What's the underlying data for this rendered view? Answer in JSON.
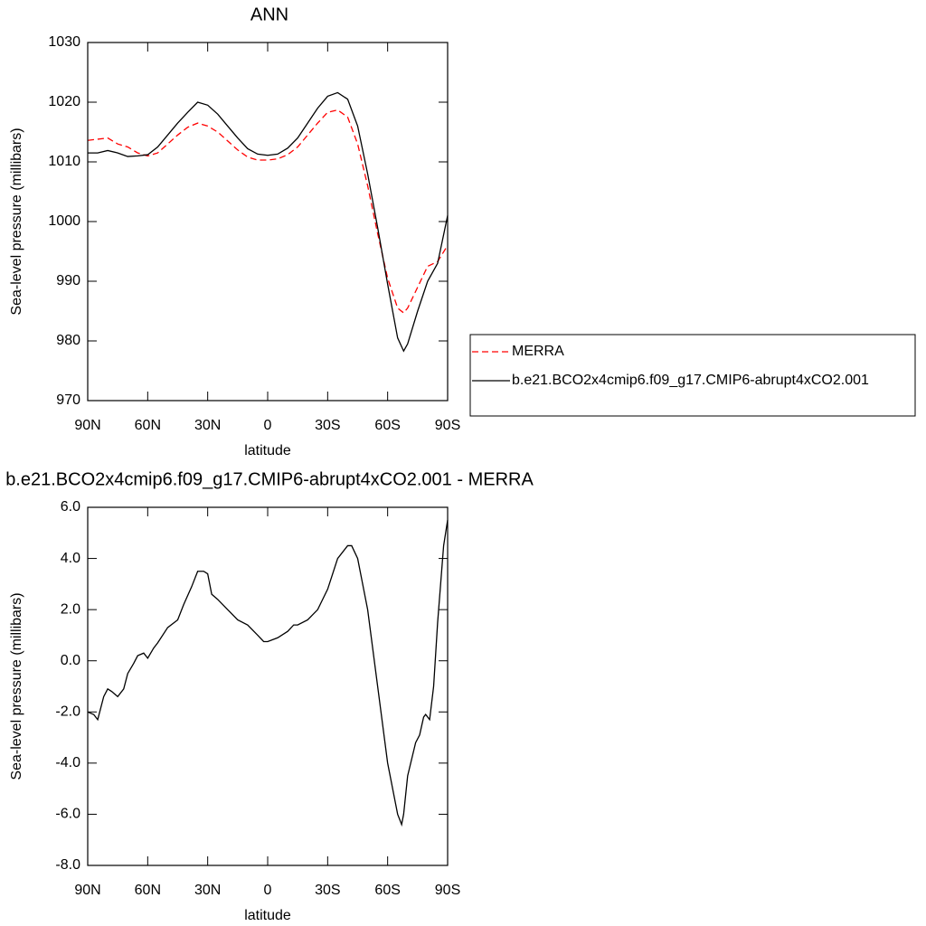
{
  "chart_data": [
    {
      "type": "line",
      "title": "ANN",
      "x_label": "latitude",
      "y_label": "Sea-level pressure (millibars)",
      "x": [
        90,
        85,
        80,
        75,
        70,
        65,
        60,
        55,
        50,
        45,
        40,
        35,
        30,
        25,
        20,
        15,
        10,
        5,
        0,
        -5,
        -10,
        -15,
        -20,
        -25,
        -30,
        -35,
        -40,
        -45,
        -50,
        -55,
        -60,
        -65,
        -68,
        -70,
        -75,
        -80,
        -85,
        -90
      ],
      "series": [
        {
          "name": "MERRA",
          "color": "#ff0000",
          "dash": true,
          "values": [
            1013.6,
            1013.8,
            1014,
            1013,
            1012.5,
            1011.5,
            1011,
            1011.5,
            1013,
            1014.5,
            1015.8,
            1016.5,
            1016,
            1015,
            1013.5,
            1012,
            1010.8,
            1010.3,
            1010.3,
            1010.5,
            1011.2,
            1012.5,
            1014.5,
            1016.5,
            1018.3,
            1018.7,
            1017.5,
            1013,
            1006,
            998,
            990.5,
            985.5,
            984.7,
            985.5,
            989,
            992.5,
            993.3,
            996
          ]
        },
        {
          "name": "b.e21.BCO2x4cmip6.f09_g17.CMIP6-abrupt4xCO2.001",
          "color": "#000000",
          "dash": false,
          "values": [
            1011.5,
            1011.5,
            1011.9,
            1011.5,
            1010.9,
            1011,
            1011.2,
            1012.5,
            1014.5,
            1016.5,
            1018.3,
            1020,
            1019.5,
            1018,
            1016,
            1014,
            1012.2,
            1011.3,
            1011.1,
            1011.3,
            1012.3,
            1014,
            1016.5,
            1019,
            1021,
            1021.6,
            1020.5,
            1016,
            1008,
            999,
            989.5,
            980.5,
            978.3,
            979.5,
            985,
            990,
            993,
            1001
          ]
        }
      ],
      "xlim": [
        90,
        -90
      ],
      "xticks": [
        {
          "value": 90,
          "label": "90N"
        },
        {
          "value": 60,
          "label": "60N"
        },
        {
          "value": 30,
          "label": "30N"
        },
        0,
        {
          "value": -30,
          "label": "30S"
        },
        {
          "value": -60,
          "label": "60S"
        },
        {
          "value": -90,
          "label": "90S"
        }
      ],
      "ylim": [
        970,
        1030
      ],
      "yticks": [
        970,
        980,
        990,
        1000,
        1010,
        1020,
        1030
      ],
      "legend": "right"
    },
    {
      "type": "line",
      "title": "b.e21.BCO2x4cmip6.f09_g17.CMIP6-abrupt4xCO2.001 - MERRA",
      "x_label": "latitude",
      "y_label": "Sea-level pressure (millibars)",
      "x": [
        90,
        87,
        85,
        82,
        80,
        78,
        75,
        72,
        70,
        67,
        65,
        62,
        60,
        57,
        55,
        50,
        45,
        42,
        38,
        35,
        32,
        30,
        28,
        25,
        20,
        15,
        10,
        5,
        2,
        0,
        -5,
        -10,
        -13,
        -15,
        -20,
        -25,
        -30,
        -35,
        -40,
        -42,
        -45,
        -50,
        -55,
        -60,
        -65,
        -67,
        -68,
        -70,
        -74,
        -76,
        -78,
        -79,
        -81,
        -83,
        -85,
        -88,
        -90
      ],
      "series": [
        {
          "color": "#000000",
          "dash": false,
          "values": [
            -2.0,
            -2.1,
            -2.3,
            -1.4,
            -1.1,
            -1.2,
            -1.4,
            -1.1,
            -0.5,
            -0.1,
            0.2,
            0.3,
            0.1,
            0.5,
            0.7,
            1.3,
            1.6,
            2.2,
            2.9,
            3.5,
            3.5,
            3.4,
            2.6,
            2.4,
            2.0,
            1.6,
            1.4,
            1.0,
            0.75,
            0.75,
            0.9,
            1.15,
            1.4,
            1.4,
            1.6,
            2.0,
            2.8,
            4.0,
            4.5,
            4.5,
            4.0,
            2.0,
            -1.0,
            -4.0,
            -6.0,
            -6.4,
            -6.0,
            -4.5,
            -3.2,
            -2.9,
            -2.2,
            -2.1,
            -2.3,
            -1.0,
            1.5,
            4.5,
            5.5
          ]
        }
      ],
      "xlim": [
        90,
        -90
      ],
      "xticks": [
        {
          "value": 90,
          "label": "90N"
        },
        {
          "value": 60,
          "label": "60N"
        },
        {
          "value": 30,
          "label": "30N"
        },
        0,
        {
          "value": -30,
          "label": "30S"
        },
        {
          "value": -60,
          "label": "60S"
        },
        {
          "value": -90,
          "label": "90S"
        }
      ],
      "ylim": [
        -8,
        6
      ],
      "yticks": [
        {
          "value": -8,
          "label": "-8.0"
        },
        {
          "value": -6,
          "label": "-6.0"
        },
        {
          "value": -4,
          "label": "-4.0"
        },
        {
          "value": -2,
          "label": "-2.0"
        },
        {
          "value": 0,
          "label": "0.0"
        },
        {
          "value": 2,
          "label": "2.0"
        },
        {
          "value": 4,
          "label": "4.0"
        },
        {
          "value": 6,
          "label": "6.0"
        }
      ]
    }
  ]
}
